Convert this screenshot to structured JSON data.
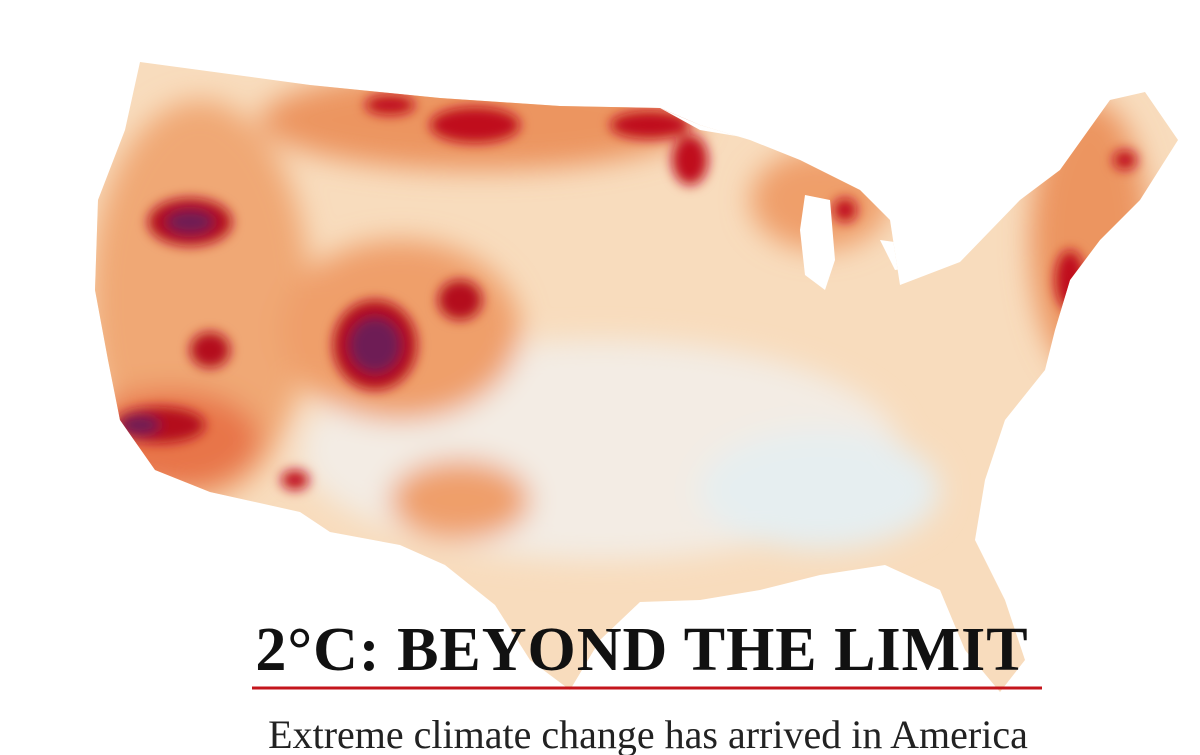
{
  "title": "2°C: BEYOND THE LIMIT",
  "subtitle": "Extreme climate change has arrived in America"
}
